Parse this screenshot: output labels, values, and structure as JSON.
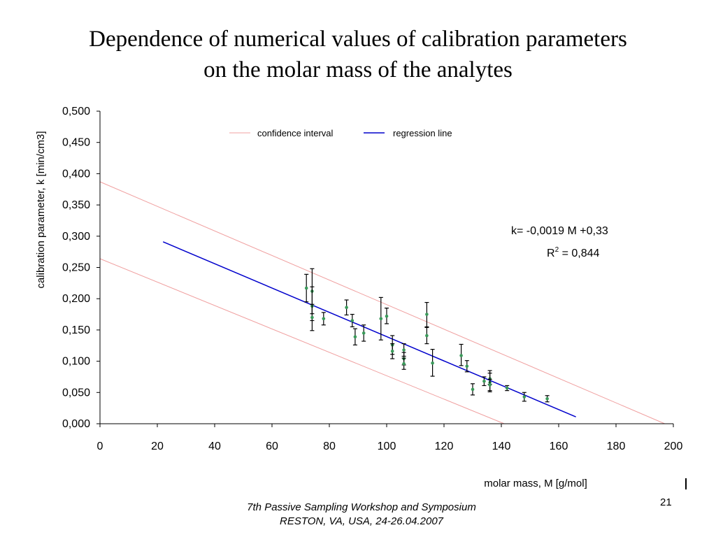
{
  "slide": {
    "title_line1": "Dependence of numerical values of calibration parameters",
    "title_line2": "on the molar mass of the analytes",
    "footer_line1": "7th Passive Sampling Workshop and Symposium",
    "footer_line2": "RESTON, VA, USA, 24-26.04.2007",
    "page_number": "21"
  },
  "chart_data": {
    "type": "scatter",
    "title": "",
    "xlabel": "molar mass, M [g/mol]",
    "ylabel": "calibration parameter, k [min/cm3]",
    "xlim": [
      0,
      200
    ],
    "ylim": [
      0,
      0.5
    ],
    "x_ticks": [
      0,
      20,
      40,
      60,
      80,
      100,
      120,
      140,
      160,
      180,
      200
    ],
    "x_tick_labels": [
      "0",
      "20",
      "40",
      "60",
      "80",
      "100",
      "120",
      "140",
      "160",
      "180",
      "200"
    ],
    "y_ticks": [
      0,
      0.05,
      0.1,
      0.15,
      0.2,
      0.25,
      0.3,
      0.35,
      0.4,
      0.45,
      0.5
    ],
    "y_tick_labels": [
      "0,000",
      "0,050",
      "0,100",
      "0,150",
      "0,200",
      "0,250",
      "0,300",
      "0,350",
      "0,400",
      "0,450",
      "0,500"
    ],
    "grid": false,
    "legend": {
      "position": "top-center",
      "entries": [
        {
          "label": "confidence interval",
          "color": "#f0a0a0"
        },
        {
          "label": "regression line",
          "color": "#0000cc"
        }
      ]
    },
    "annotations": {
      "equation": "k= -0,0019 M +0,33",
      "r2_prefix": "R",
      "r2_exp": "2",
      "r2_suffix": " = 0,844"
    },
    "regression_line": {
      "x": [
        22,
        166
      ],
      "y": [
        0.291,
        0.011
      ],
      "color": "#0000cc"
    },
    "confidence_upper": {
      "x": [
        0,
        197
      ],
      "y": [
        0.387,
        0
      ],
      "color": "#f0a0a0"
    },
    "confidence_lower": {
      "x": [
        0,
        141
      ],
      "y": [
        0.264,
        0
      ],
      "color": "#f0a0a0"
    },
    "marker_color": "#3a9a5a",
    "points": [
      {
        "x": 72,
        "y": 0.217,
        "low": 0.195,
        "high": 0.239
      },
      {
        "x": 74,
        "y": 0.212,
        "low": 0.176,
        "high": 0.248
      },
      {
        "x": 74,
        "y": 0.188,
        "low": 0.165,
        "high": 0.219
      },
      {
        "x": 74,
        "y": 0.17,
        "low": 0.149,
        "high": 0.191
      },
      {
        "x": 78,
        "y": 0.168,
        "low": 0.158,
        "high": 0.178
      },
      {
        "x": 86,
        "y": 0.186,
        "low": 0.174,
        "high": 0.198
      },
      {
        "x": 88,
        "y": 0.165,
        "low": 0.155,
        "high": 0.175
      },
      {
        "x": 89,
        "y": 0.139,
        "low": 0.126,
        "high": 0.152
      },
      {
        "x": 92,
        "y": 0.145,
        "low": 0.132,
        "high": 0.158
      },
      {
        "x": 98,
        "y": 0.168,
        "low": 0.134,
        "high": 0.202
      },
      {
        "x": 100,
        "y": 0.172,
        "low": 0.16,
        "high": 0.185
      },
      {
        "x": 102,
        "y": 0.126,
        "low": 0.111,
        "high": 0.141
      },
      {
        "x": 102,
        "y": 0.116,
        "low": 0.104,
        "high": 0.128
      },
      {
        "x": 106,
        "y": 0.118,
        "low": 0.108,
        "high": 0.128
      },
      {
        "x": 106,
        "y": 0.104,
        "low": 0.094,
        "high": 0.114
      },
      {
        "x": 106,
        "y": 0.096,
        "low": 0.087,
        "high": 0.105
      },
      {
        "x": 114,
        "y": 0.175,
        "low": 0.155,
        "high": 0.194
      },
      {
        "x": 114,
        "y": 0.141,
        "low": 0.128,
        "high": 0.154
      },
      {
        "x": 116,
        "y": 0.097,
        "low": 0.076,
        "high": 0.119
      },
      {
        "x": 126,
        "y": 0.109,
        "low": 0.093,
        "high": 0.127
      },
      {
        "x": 128,
        "y": 0.092,
        "low": 0.083,
        "high": 0.101
      },
      {
        "x": 130,
        "y": 0.055,
        "low": 0.046,
        "high": 0.064
      },
      {
        "x": 134,
        "y": 0.068,
        "low": 0.061,
        "high": 0.075
      },
      {
        "x": 136,
        "y": 0.072,
        "low": 0.063,
        "high": 0.085
      },
      {
        "x": 136,
        "y": 0.066,
        "low": 0.051,
        "high": 0.081
      },
      {
        "x": 136,
        "y": 0.062,
        "low": 0.053,
        "high": 0.071
      },
      {
        "x": 142,
        "y": 0.057,
        "low": 0.053,
        "high": 0.061
      },
      {
        "x": 148,
        "y": 0.043,
        "low": 0.036,
        "high": 0.05
      },
      {
        "x": 156,
        "y": 0.04,
        "low": 0.035,
        "high": 0.045
      }
    ]
  }
}
